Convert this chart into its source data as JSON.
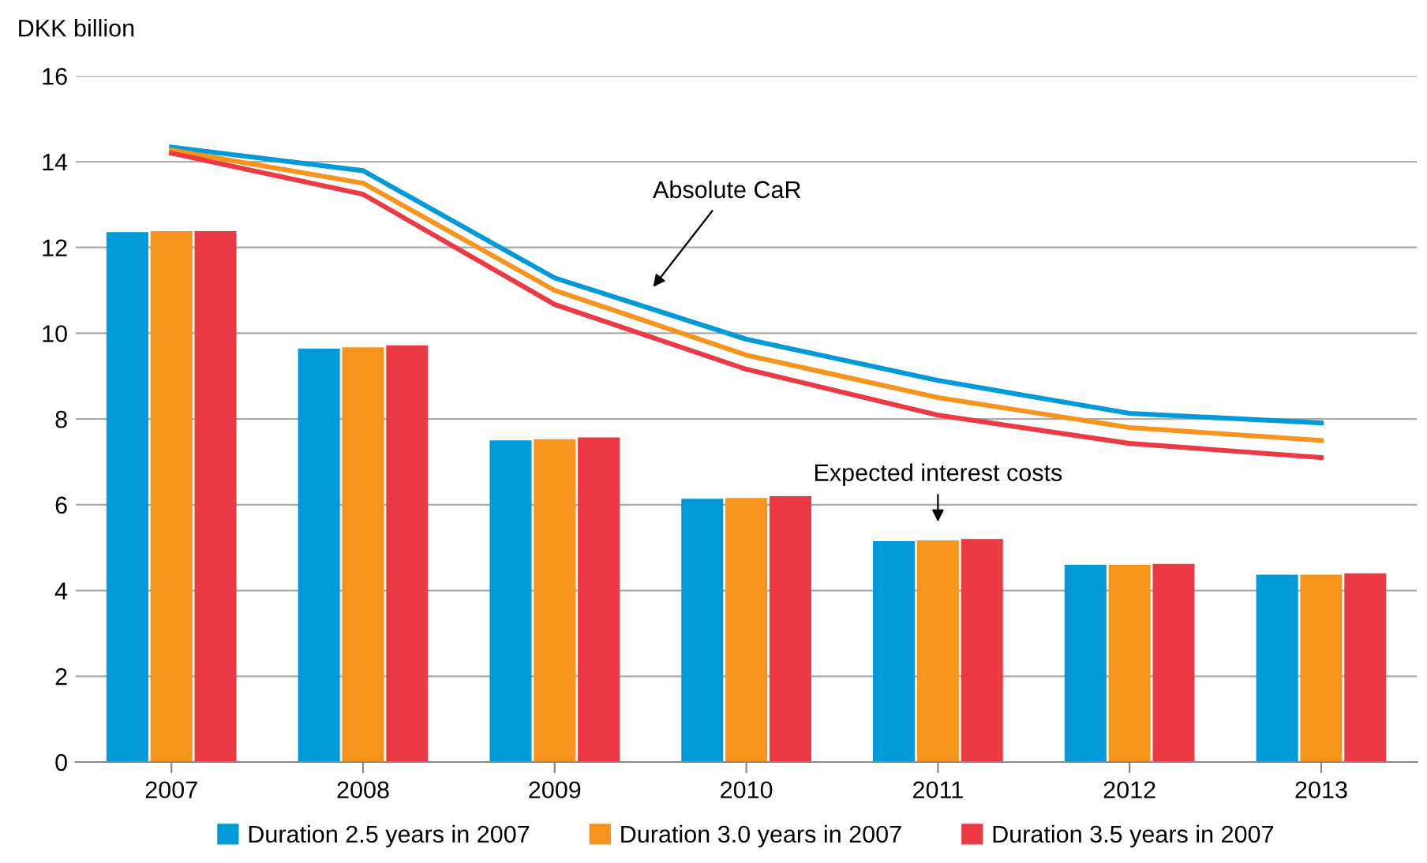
{
  "chart_data": {
    "type": "bar",
    "ylabel": "DKK billion",
    "categories": [
      "2007",
      "2008",
      "2009",
      "2010",
      "2011",
      "2012",
      "2013"
    ],
    "series": [
      {
        "name": "Duration 2.5 years in 2007",
        "color": "#009ad8",
        "values": [
          12.36,
          9.64,
          7.5,
          6.14,
          5.15,
          4.6,
          4.37
        ]
      },
      {
        "name": "Duration 3.0 years in 2007",
        "color": "#f7941d",
        "values": [
          12.38,
          9.67,
          7.53,
          6.16,
          5.17,
          4.6,
          4.37
        ]
      },
      {
        "name": "Duration 3.5 years in 2007",
        "color": "#ec3a45",
        "values": [
          12.38,
          9.72,
          7.57,
          6.2,
          5.2,
          4.62,
          4.4
        ]
      },
      {
        "type": "line",
        "color": "#009ad8",
        "values": [
          14.34,
          13.79,
          11.29,
          9.86,
          8.9,
          8.13,
          7.91
        ]
      },
      {
        "type": "line",
        "color": "#f7941d",
        "values": [
          14.27,
          13.5,
          11.0,
          9.49,
          8.5,
          7.8,
          7.5
        ]
      },
      {
        "type": "line",
        "color": "#ec3a45",
        "values": [
          14.2,
          13.24,
          10.67,
          9.16,
          8.09,
          7.43,
          7.1
        ]
      }
    ],
    "ylim": [
      0,
      16
    ],
    "yticks": [
      0,
      2,
      4,
      6,
      8,
      10,
      12,
      14,
      16
    ],
    "grid": "y",
    "legend": "bottom",
    "annotations": [
      "Absolute CaR",
      "Expected interest costs"
    ]
  }
}
